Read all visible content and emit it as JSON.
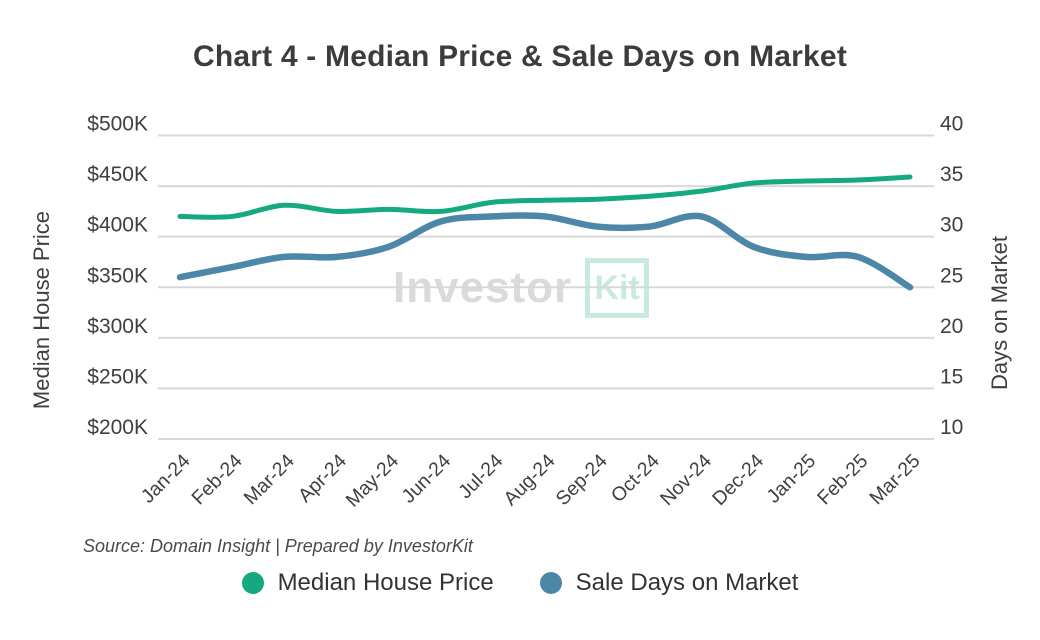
{
  "title": "Chart 4 - Median Price & Sale Days on Market",
  "source_note": "Source: Domain Insight | Prepared by InvestorKit",
  "watermark": {
    "part1": "Investor",
    "part2": "Kit"
  },
  "colors": {
    "price_line": "#15a980",
    "days_line": "#4d87a8",
    "gridline": "#d8d8d8",
    "axis_text": "#3f3f3f",
    "watermark_gray": "#dadada",
    "watermark_teal": "#c6eae1"
  },
  "left_axis": {
    "title": "Median House Price",
    "ticks": [
      "$500K",
      "$450K",
      "$400K",
      "$350K",
      "$300K",
      "$250K",
      "$200K"
    ]
  },
  "right_axis": {
    "title": "Days on Market",
    "ticks": [
      "40",
      "35",
      "30",
      "25",
      "20",
      "15",
      "10"
    ]
  },
  "legend": [
    {
      "label": "Median House Price",
      "color": "#15a980"
    },
    {
      "label": "Sale Days on Market",
      "color": "#4d87a8"
    }
  ],
  "chart_data": {
    "type": "line",
    "categories": [
      "Jan-24",
      "Feb-24",
      "Mar-24",
      "Apr-24",
      "May-24",
      "Jun-24",
      "Jul-24",
      "Aug-24",
      "Sep-24",
      "Oct-24",
      "Nov-24",
      "Dec-24",
      "Jan-25",
      "Feb-25",
      "Mar-25"
    ],
    "series": [
      {
        "name": "Median House Price",
        "axis": "left",
        "color": "#15a980",
        "values": [
          420000,
          420000,
          431000,
          425000,
          427000,
          425000,
          434000,
          436000,
          437000,
          440000,
          445000,
          453000,
          455000,
          456000,
          459000
        ]
      },
      {
        "name": "Sale Days on Market",
        "axis": "right",
        "color": "#4d87a8",
        "values": [
          26,
          27,
          28,
          28,
          29,
          31.5,
          32,
          32,
          31,
          31,
          32,
          29,
          28,
          28,
          25
        ]
      }
    ],
    "left_ylim": [
      200000,
      500000
    ],
    "right_ylim": [
      10,
      40
    ],
    "grid": "horizontal",
    "legend_position": "bottom",
    "smoothing": "spline"
  }
}
